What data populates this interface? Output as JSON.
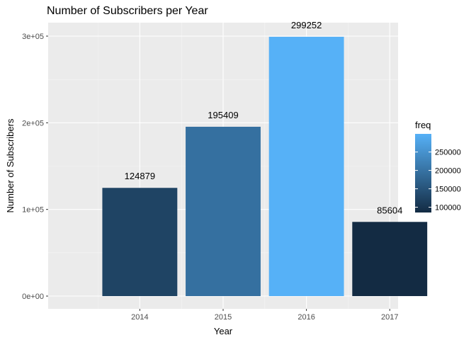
{
  "chart_data": {
    "type": "bar",
    "title": "Number of Subscribers per Year",
    "xlabel": "Year",
    "ylabel": "Number of Subscribers",
    "categories": [
      "2014",
      "2015",
      "2016",
      "2017"
    ],
    "values": [
      124879,
      195409,
      299252,
      85604
    ],
    "data_labels": [
      "124879",
      "195409",
      "299252",
      "85604"
    ],
    "ylim": [
      0,
      300000
    ],
    "y_ticks": [
      0,
      100000,
      200000,
      300000
    ],
    "y_tick_labels": [
      "0e+00",
      "1e+05",
      "2e+05",
      "3e+05"
    ],
    "grid": true,
    "legend": {
      "title": "freq",
      "placement": "right",
      "type": "colorbar",
      "low_color": "#132B43",
      "high_color": "#56B1F7",
      "ticks": [
        100000,
        150000,
        200000,
        250000
      ],
      "tick_labels": [
        "100000",
        "150000",
        "200000",
        "250000"
      ]
    },
    "colors": {
      "panel_background": "#EBEBEB",
      "grid_major": "#FFFFFF",
      "grid_minor": "#F5F5F5"
    }
  }
}
